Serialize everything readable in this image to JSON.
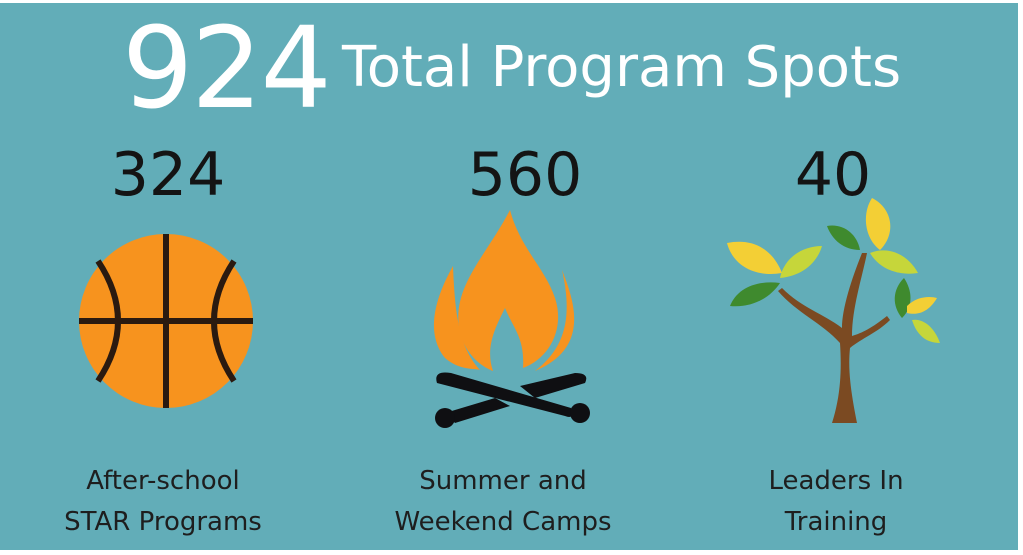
{
  "header": {
    "total": "924",
    "title": "Total Program Spots"
  },
  "programs": [
    {
      "count": "324",
      "label_line1": "After-school",
      "label_line2": "STAR Programs",
      "icon": "basketball-icon"
    },
    {
      "count": "560",
      "label_line1": "Summer and",
      "label_line2": "Weekend Camps",
      "icon": "campfire-icon"
    },
    {
      "count": "40",
      "label_line1": "Leaders In",
      "label_line2": "Training",
      "icon": "tree-icon"
    }
  ],
  "colors": {
    "background": "#62adb8",
    "orange": "#f7931e",
    "brown": "#7b4a22",
    "dark": "#141414"
  }
}
